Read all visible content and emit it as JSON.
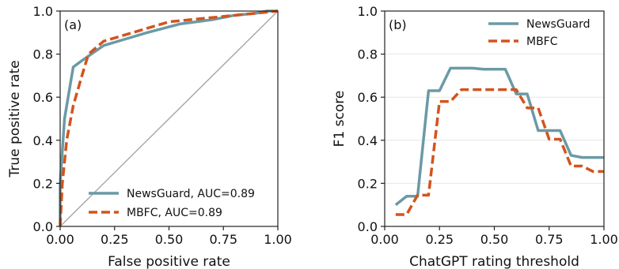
{
  "colors": {
    "newsguard": "#6a9aa6",
    "mbfc": "#d2541e",
    "diagonal": "#a9a9a9",
    "grid": "#e6e6e6"
  },
  "chart_data": [
    {
      "type": "line",
      "panel_label": "(a)",
      "xlabel": "False positive rate",
      "ylabel": "True positive rate",
      "xlim": [
        0,
        1
      ],
      "ylim": [
        0,
        1
      ],
      "x_ticks": [
        "0.00",
        "0.25",
        "0.50",
        "0.75",
        "1.00"
      ],
      "y_ticks": [
        "0.0",
        "0.2",
        "0.4",
        "0.6",
        "0.8",
        "1.0"
      ],
      "grid": false,
      "reference_line": "diagonal",
      "legend_position": "lower-right",
      "series": [
        {
          "name": "NewsGuard, AUC=0.89",
          "style": "solid",
          "x": [
            0.0,
            0.0,
            0.02,
            0.06,
            0.1,
            0.2,
            0.3,
            0.4,
            0.55,
            0.7,
            0.8,
            0.9,
            0.95,
            1.0
          ],
          "y": [
            0.0,
            0.2,
            0.5,
            0.74,
            0.77,
            0.84,
            0.87,
            0.9,
            0.94,
            0.96,
            0.98,
            0.99,
            1.0,
            1.0
          ]
        },
        {
          "name": "MBFC, AUC=0.89",
          "style": "dashed",
          "x": [
            0.0,
            0.01,
            0.03,
            0.06,
            0.1,
            0.13,
            0.2,
            0.3,
            0.4,
            0.5,
            0.6,
            0.7,
            0.8,
            0.9,
            1.0
          ],
          "y": [
            0.0,
            0.2,
            0.4,
            0.56,
            0.7,
            0.8,
            0.86,
            0.89,
            0.92,
            0.95,
            0.96,
            0.97,
            0.98,
            0.99,
            1.0
          ]
        }
      ]
    },
    {
      "type": "line",
      "panel_label": "(b)",
      "xlabel": "ChatGPT rating threshold",
      "ylabel": "F1 score",
      "xlim": [
        0,
        1
      ],
      "ylim": [
        0,
        1
      ],
      "x_ticks": [
        "0.00",
        "0.25",
        "0.50",
        "0.75",
        "1.00"
      ],
      "y_ticks": [
        "0.0",
        "0.2",
        "0.4",
        "0.6",
        "0.8",
        "1.0"
      ],
      "grid": true,
      "legend_position": "top-right",
      "series": [
        {
          "name": "NewsGuard",
          "style": "solid",
          "x": [
            0.05,
            0.1,
            0.15,
            0.2,
            0.25,
            0.3,
            0.35,
            0.4,
            0.45,
            0.5,
            0.55,
            0.6,
            0.65,
            0.7,
            0.75,
            0.8,
            0.85,
            0.9,
            0.95,
            1.0
          ],
          "y": [
            0.1,
            0.14,
            0.14,
            0.63,
            0.63,
            0.735,
            0.735,
            0.735,
            0.73,
            0.73,
            0.73,
            0.615,
            0.615,
            0.445,
            0.445,
            0.445,
            0.33,
            0.32,
            0.32,
            0.32
          ]
        },
        {
          "name": "MBFC",
          "style": "dashed",
          "x": [
            0.05,
            0.1,
            0.15,
            0.2,
            0.25,
            0.3,
            0.35,
            0.4,
            0.45,
            0.5,
            0.55,
            0.6,
            0.65,
            0.7,
            0.75,
            0.8,
            0.85,
            0.9,
            0.95,
            1.0
          ],
          "y": [
            0.055,
            0.055,
            0.145,
            0.145,
            0.58,
            0.58,
            0.635,
            0.635,
            0.635,
            0.635,
            0.635,
            0.635,
            0.55,
            0.55,
            0.405,
            0.405,
            0.28,
            0.28,
            0.255,
            0.255
          ]
        }
      ]
    }
  ]
}
